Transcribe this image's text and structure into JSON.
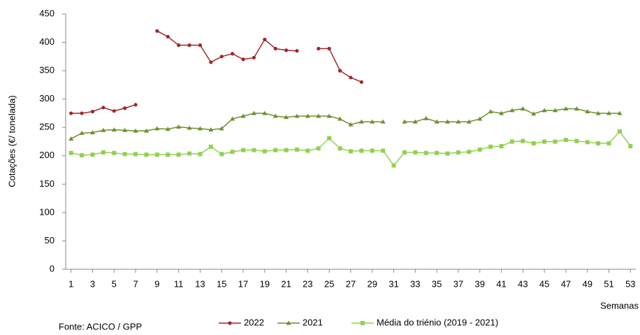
{
  "chart_data": {
    "type": "line",
    "y_label": "Cotações (€/ tonelada)",
    "x_label": "Semanas",
    "source": "Fonte: ACICO / GPP",
    "x": [
      1,
      2,
      3,
      4,
      5,
      6,
      7,
      8,
      9,
      10,
      11,
      12,
      13,
      14,
      15,
      16,
      17,
      18,
      19,
      20,
      21,
      22,
      23,
      24,
      25,
      26,
      27,
      28,
      29,
      30,
      31,
      32,
      33,
      34,
      35,
      36,
      37,
      38,
      39,
      40,
      41,
      42,
      43,
      44,
      45,
      46,
      47,
      48,
      49,
      50,
      51,
      52,
      53
    ],
    "xlim": [
      0.5,
      53.5
    ],
    "xticks": [
      1,
      3,
      5,
      7,
      9,
      11,
      13,
      15,
      17,
      19,
      21,
      23,
      25,
      27,
      29,
      31,
      33,
      35,
      37,
      39,
      41,
      43,
      45,
      47,
      49,
      51,
      53
    ],
    "ylim": [
      0,
      450
    ],
    "yticks": [
      0,
      50,
      100,
      150,
      200,
      250,
      300,
      350,
      400,
      450
    ],
    "grid": false,
    "legend": "bottom",
    "series": [
      {
        "name": "2022",
        "color": "#a0282a",
        "marker": "circle",
        "values": [
          275,
          275,
          278,
          285,
          279,
          284,
          290,
          null,
          420,
          410,
          395,
          395,
          395,
          365,
          375,
          380,
          370,
          373,
          405,
          389,
          386,
          385,
          null,
          389,
          389,
          350,
          338,
          330,
          null,
          null,
          null,
          null,
          null,
          null,
          null,
          null,
          null,
          null,
          null,
          null,
          null,
          null,
          null,
          null,
          null,
          null,
          null,
          null,
          null,
          null,
          null,
          null,
          null
        ]
      },
      {
        "name": "2021",
        "color": "#6f8f2e",
        "marker": "triangle",
        "values": [
          230,
          240,
          241,
          245,
          246,
          245,
          244,
          244,
          248,
          247,
          251,
          249,
          248,
          246,
          248,
          265,
          270,
          275,
          275,
          270,
          268,
          270,
          270,
          270,
          270,
          265,
          255,
          260,
          260,
          260,
          null,
          260,
          260,
          266,
          260,
          260,
          260,
          260,
          265,
          278,
          275,
          280,
          283,
          274,
          280,
          280,
          283,
          283,
          278,
          275,
          275,
          275,
          null
        ]
      },
      {
        "name": "Média do triénio (2019 - 2021)",
        "color": "#92d050",
        "marker": "square",
        "values": [
          205,
          201,
          202,
          206,
          205,
          203,
          203,
          202,
          202,
          202,
          202,
          204,
          203,
          216,
          203,
          207,
          210,
          210,
          208,
          210,
          210,
          211,
          209,
          213,
          231,
          213,
          208,
          209,
          209,
          209,
          183,
          206,
          206,
          205,
          205,
          204,
          206,
          207,
          211,
          216,
          217,
          225,
          226,
          222,
          225,
          225,
          228,
          226,
          224,
          222,
          222,
          243,
          217
        ]
      }
    ]
  }
}
